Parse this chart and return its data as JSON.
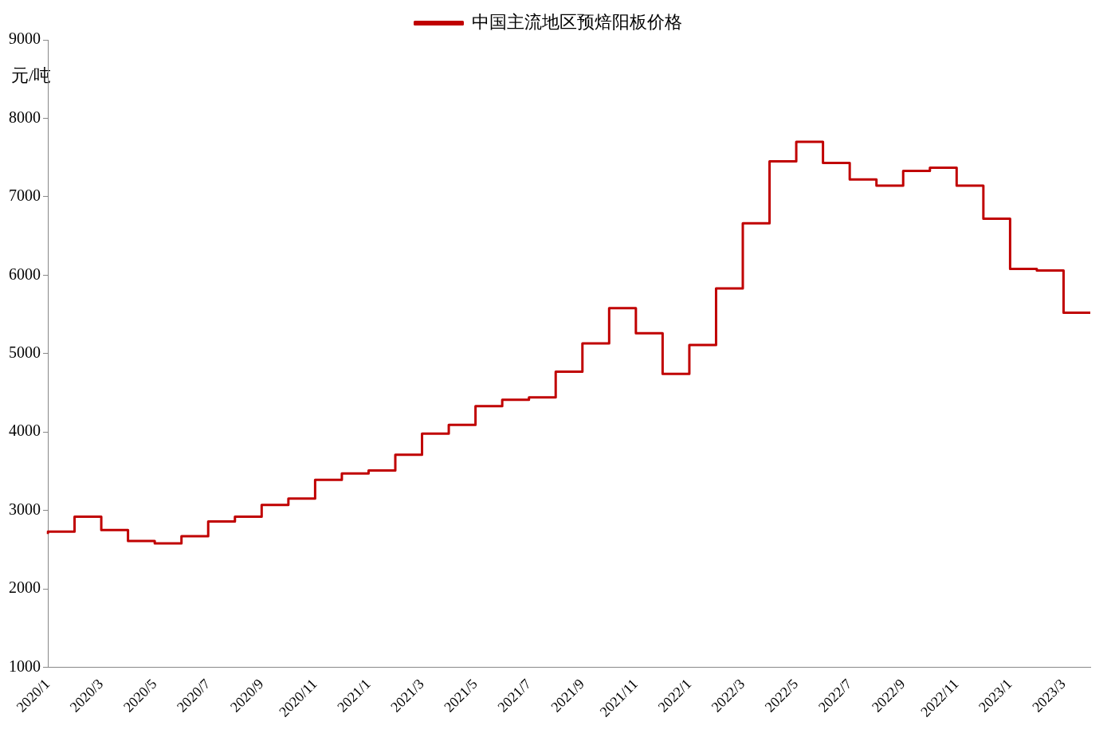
{
  "chart_data": {
    "type": "step",
    "ylabel": "元/吨",
    "legend": "top",
    "grid": false,
    "marker": "none",
    "categories": [
      "2020/1",
      null,
      "2020/3",
      null,
      "2020/5",
      null,
      "2020/7",
      null,
      "2020/9",
      null,
      "2020/11",
      null,
      "2021/1",
      null,
      "2021/3",
      null,
      "2021/5",
      null,
      "2021/7",
      null,
      "2021/9",
      null,
      "2021/11",
      null,
      "2022/1",
      null,
      "2022/3",
      null,
      "2022/5",
      null,
      "2022/7",
      null,
      "2022/9",
      null,
      "2022/11",
      null,
      "2023/1",
      null,
      "2023/3",
      null
    ],
    "series": [
      {
        "name": "中国主流地区预焙阳板价格",
        "color": "#c00000",
        "values": [
          2700,
          2730,
          2920,
          2750,
          2610,
          2580,
          2670,
          2860,
          2920,
          3070,
          3150,
          3390,
          3470,
          3510,
          3710,
          3980,
          4090,
          4330,
          4410,
          4440,
          4770,
          5130,
          5580,
          5260,
          4740,
          5110,
          5830,
          6660,
          7450,
          7700,
          7430,
          7220,
          7140,
          7330,
          7370,
          7140,
          6720,
          6080,
          6060,
          5520
        ]
      }
    ],
    "ylim": [
      1000,
      9000
    ],
    "yticks": [
      1000,
      2000,
      3000,
      4000,
      5000,
      6000,
      7000,
      8000,
      9000
    ]
  }
}
